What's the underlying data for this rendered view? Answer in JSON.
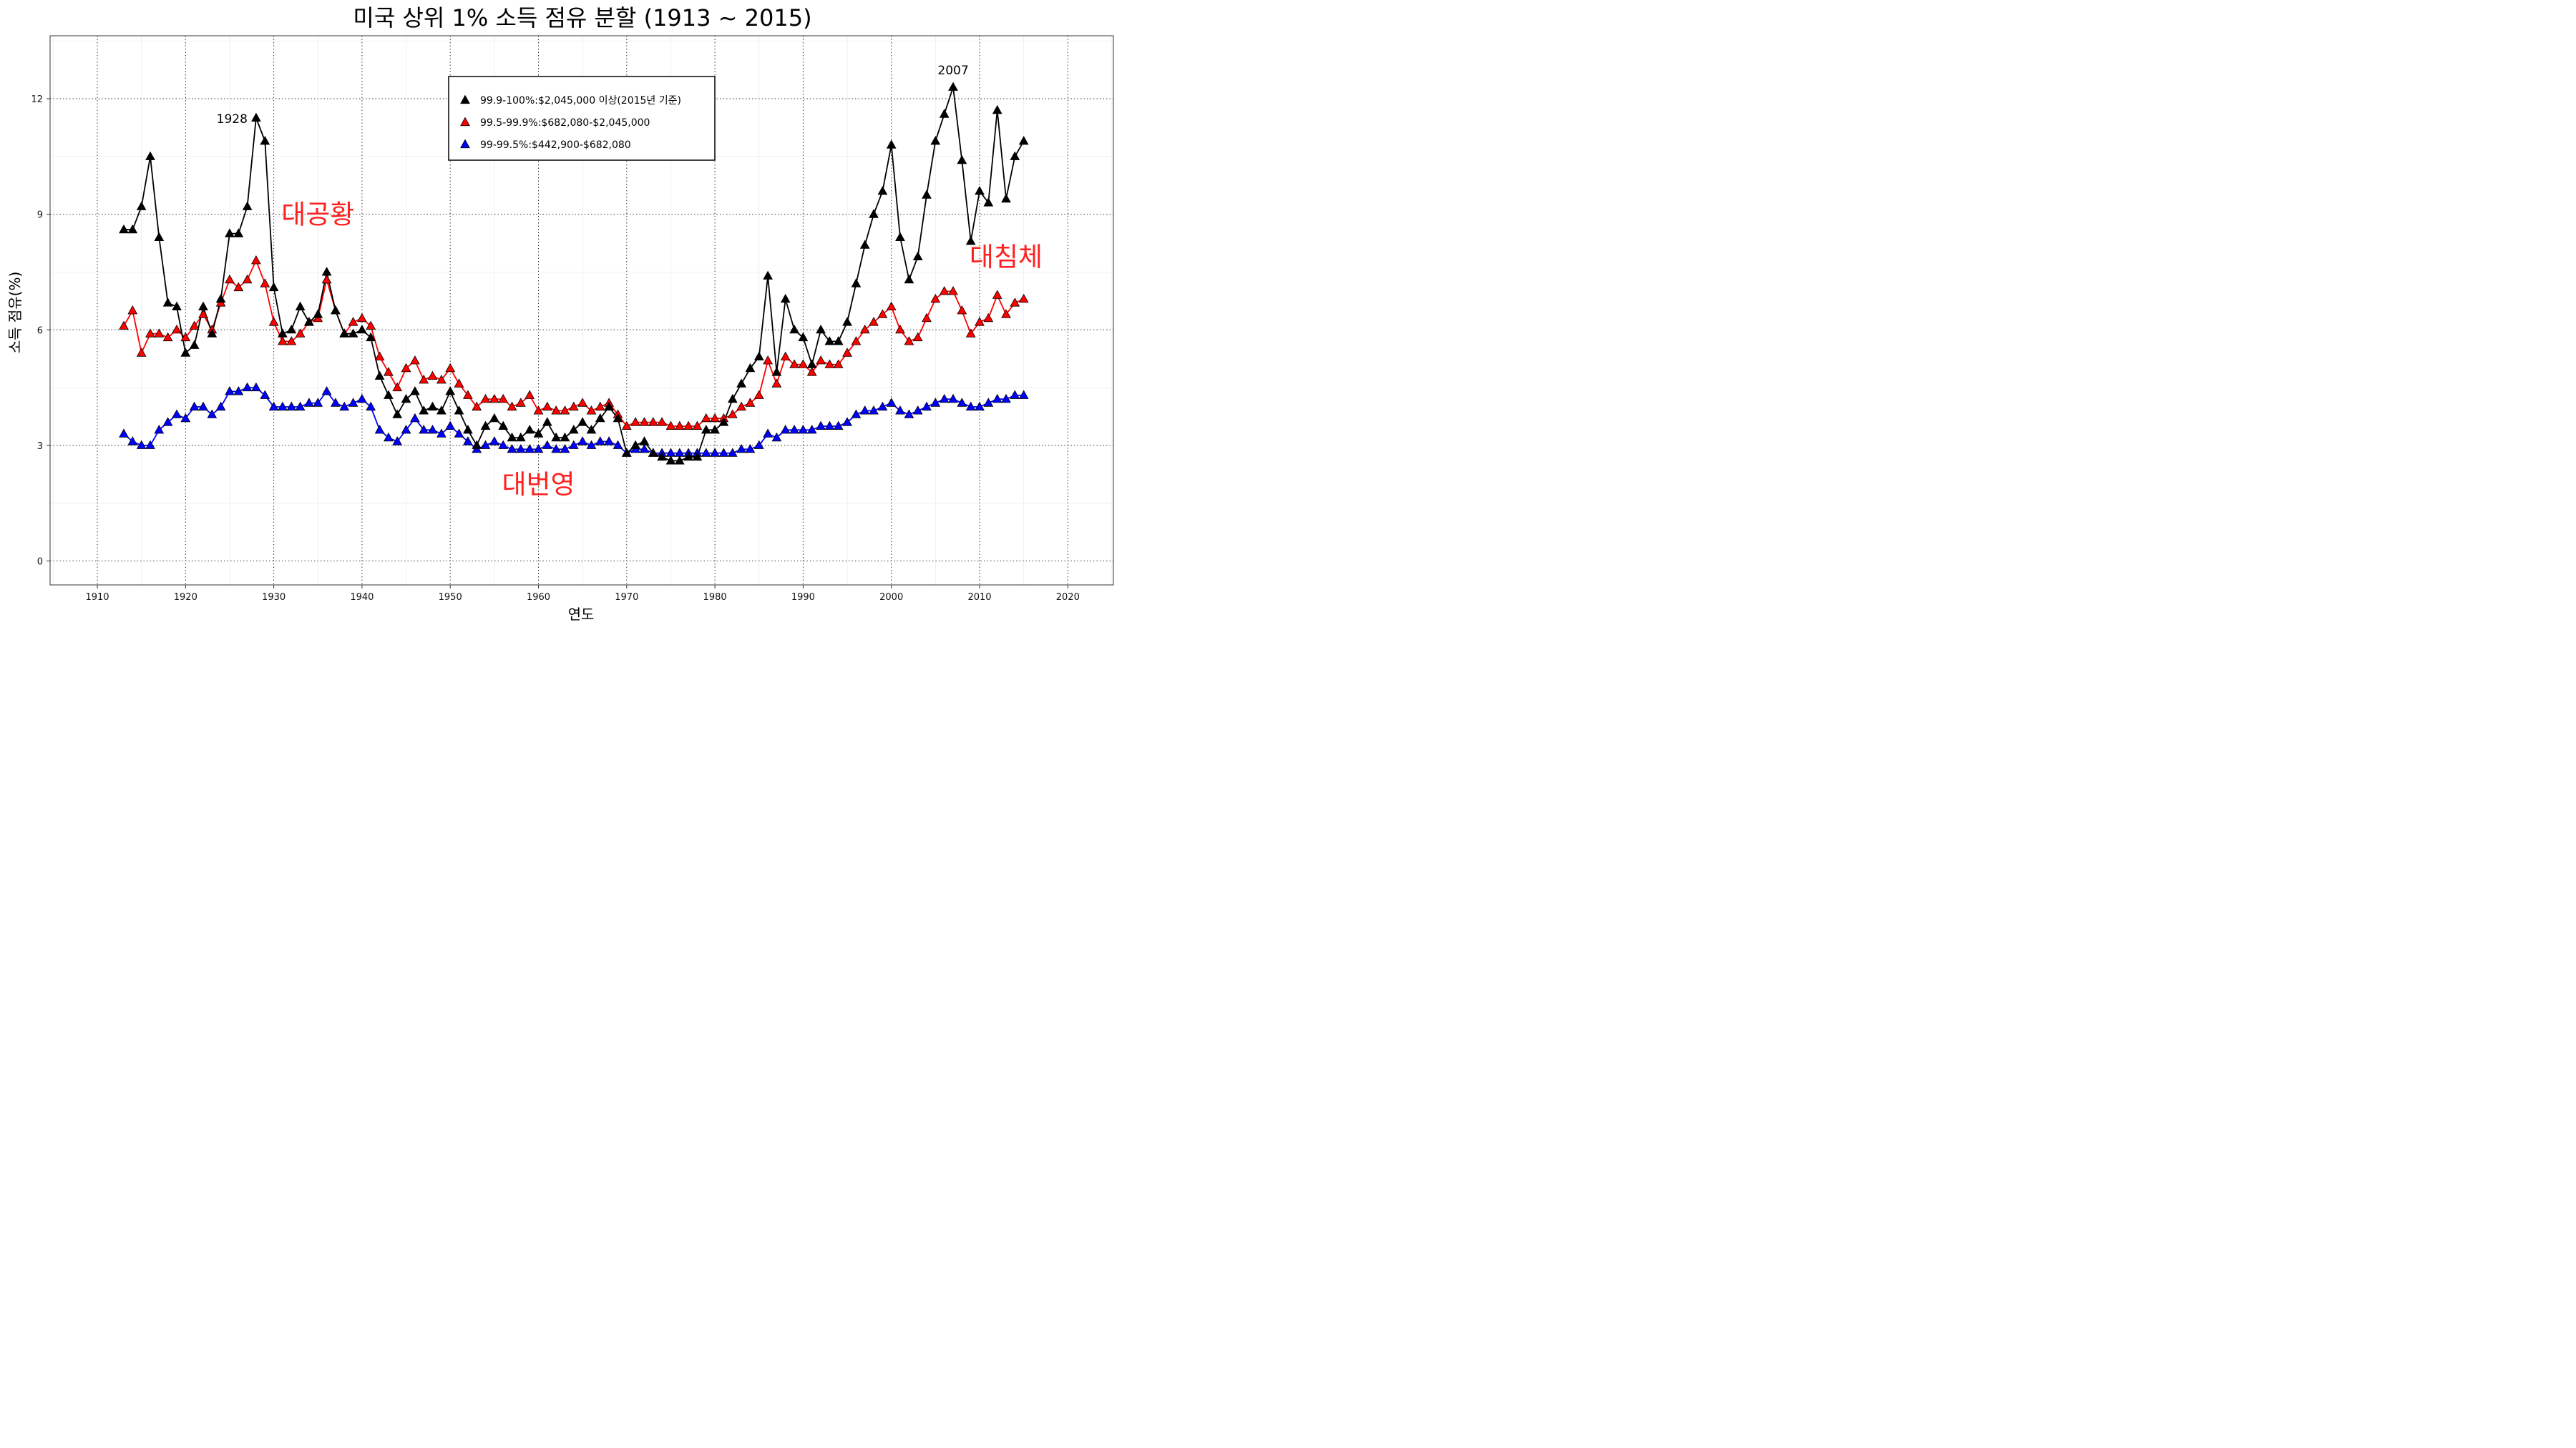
{
  "chart_data": {
    "type": "line",
    "title": "미국 상위 1% 소득 점유 분할 (1913 ~ 2015)",
    "xlabel": "연도",
    "ylabel": "소득 점유(%)",
    "xlim": [
      1905,
      2025
    ],
    "ylim": [
      -0.6,
      13.4
    ],
    "xticks": [
      1910,
      1920,
      1930,
      1940,
      1950,
      1960,
      1970,
      1980,
      1990,
      2000,
      2010,
      2020
    ],
    "yticks": [
      0,
      3,
      6,
      9,
      12
    ],
    "grid": true,
    "legend_position": "top-center",
    "x": [
      1913,
      1914,
      1915,
      1916,
      1917,
      1918,
      1919,
      1920,
      1921,
      1922,
      1923,
      1924,
      1925,
      1926,
      1927,
      1928,
      1929,
      1930,
      1931,
      1932,
      1933,
      1934,
      1935,
      1936,
      1937,
      1938,
      1939,
      1940,
      1941,
      1942,
      1943,
      1944,
      1945,
      1946,
      1947,
      1948,
      1949,
      1950,
      1951,
      1952,
      1953,
      1954,
      1955,
      1956,
      1957,
      1958,
      1959,
      1960,
      1961,
      1962,
      1963,
      1964,
      1965,
      1966,
      1967,
      1968,
      1969,
      1970,
      1971,
      1972,
      1973,
      1974,
      1975,
      1976,
      1977,
      1978,
      1979,
      1980,
      1981,
      1982,
      1983,
      1984,
      1985,
      1986,
      1987,
      1988,
      1989,
      1990,
      1991,
      1992,
      1993,
      1994,
      1995,
      1996,
      1997,
      1998,
      1999,
      2000,
      2001,
      2002,
      2003,
      2004,
      2005,
      2006,
      2007,
      2008,
      2009,
      2010,
      2011,
      2012,
      2013,
      2014,
      2015
    ],
    "series": [
      {
        "name": "99.9-100%:$2,045,000 이상(2015년 기준)",
        "color": "#000000",
        "values": [
          8.6,
          8.6,
          9.2,
          10.5,
          8.4,
          6.7,
          6.6,
          5.4,
          5.6,
          6.6,
          5.9,
          6.8,
          8.5,
          8.5,
          9.2,
          11.5,
          10.9,
          7.1,
          5.9,
          6.0,
          6.6,
          6.2,
          6.4,
          7.5,
          6.5,
          5.9,
          5.9,
          6.0,
          5.8,
          4.8,
          4.3,
          3.8,
          4.2,
          4.4,
          3.9,
          4.0,
          3.9,
          4.4,
          3.9,
          3.4,
          3.0,
          3.5,
          3.7,
          3.5,
          3.2,
          3.2,
          3.4,
          3.3,
          3.6,
          3.2,
          3.2,
          3.4,
          3.6,
          3.4,
          3.7,
          4.0,
          3.7,
          2.8,
          3.0,
          3.1,
          2.8,
          2.7,
          2.6,
          2.6,
          2.7,
          2.7,
          3.4,
          3.4,
          3.6,
          4.2,
          4.6,
          5.0,
          5.3,
          7.4,
          4.9,
          6.8,
          6.0,
          5.8,
          5.1,
          6.0,
          5.7,
          5.7,
          6.2,
          7.2,
          8.2,
          9.0,
          9.6,
          10.8,
          8.4,
          7.3,
          7.9,
          9.5,
          10.9,
          11.6,
          12.3,
          10.4,
          8.3,
          9.6,
          9.3,
          11.7,
          9.4,
          10.5,
          10.9
        ]
      },
      {
        "name": "99.5-99.9%:$682,080-$2,045,000",
        "color": "#ff0000",
        "values": [
          6.1,
          6.5,
          5.4,
          5.9,
          5.9,
          5.8,
          6.0,
          5.8,
          6.1,
          6.4,
          6.0,
          6.7,
          7.3,
          7.1,
          7.3,
          7.8,
          7.2,
          6.2,
          5.7,
          5.7,
          5.9,
          6.2,
          6.3,
          7.3,
          6.5,
          5.9,
          6.2,
          6.3,
          6.1,
          5.3,
          4.9,
          4.5,
          5.0,
          5.2,
          4.7,
          4.8,
          4.7,
          5.0,
          4.6,
          4.3,
          4.0,
          4.2,
          4.2,
          4.2,
          4.0,
          4.1,
          4.3,
          3.9,
          4.0,
          3.9,
          3.9,
          4.0,
          4.1,
          3.9,
          4.0,
          4.1,
          3.8,
          3.5,
          3.6,
          3.6,
          3.6,
          3.6,
          3.5,
          3.5,
          3.5,
          3.5,
          3.7,
          3.7,
          3.7,
          3.8,
          4.0,
          4.1,
          4.3,
          5.2,
          4.6,
          5.3,
          5.1,
          5.1,
          4.9,
          5.2,
          5.1,
          5.1,
          5.4,
          5.7,
          6.0,
          6.2,
          6.4,
          6.6,
          6.0,
          5.7,
          5.8,
          6.3,
          6.8,
          7.0,
          7.0,
          6.5,
          5.9,
          6.2,
          6.3,
          6.9,
          6.4,
          6.7,
          6.8
        ]
      },
      {
        "name": "99-99.5%:$442,900-$682,080",
        "color": "#0000ff",
        "values": [
          3.3,
          3.1,
          3.0,
          3.0,
          3.4,
          3.6,
          3.8,
          3.7,
          4.0,
          4.0,
          3.8,
          4.0,
          4.4,
          4.4,
          4.5,
          4.5,
          4.3,
          4.0,
          4.0,
          4.0,
          4.0,
          4.1,
          4.1,
          4.4,
          4.1,
          4.0,
          4.1,
          4.2,
          4.0,
          3.4,
          3.2,
          3.1,
          3.4,
          3.7,
          3.4,
          3.4,
          3.3,
          3.5,
          3.3,
          3.1,
          2.9,
          3.0,
          3.1,
          3.0,
          2.9,
          2.9,
          2.9,
          2.9,
          3.0,
          2.9,
          2.9,
          3.0,
          3.1,
          3.0,
          3.1,
          3.1,
          3.0,
          2.8,
          2.9,
          2.9,
          2.8,
          2.8,
          2.8,
          2.8,
          2.8,
          2.8,
          2.8,
          2.8,
          2.8,
          2.8,
          2.9,
          2.9,
          3.0,
          3.3,
          3.2,
          3.4,
          3.4,
          3.4,
          3.4,
          3.5,
          3.5,
          3.5,
          3.6,
          3.8,
          3.9,
          3.9,
          4.0,
          4.1,
          3.9,
          3.8,
          3.9,
          4.0,
          4.1,
          4.2,
          4.2,
          4.1,
          4.0,
          4.0,
          4.1,
          4.2,
          4.2,
          4.3,
          4.3
        ]
      }
    ],
    "annotations": [
      {
        "text": "1928",
        "x": 1928,
        "y": 11.5,
        "align": "left-of"
      },
      {
        "text": "2007",
        "x": 2007,
        "y": 12.3,
        "align": "above"
      }
    ],
    "era_labels": [
      {
        "text": "대공황",
        "x": 1935,
        "y": 9.0,
        "color": "#ff0000"
      },
      {
        "text": "대번영",
        "x": 1960,
        "y": 2.0,
        "color": "#ff0000"
      },
      {
        "text": "대침체",
        "x": 2013,
        "y": 7.9,
        "color": "#ff0000"
      }
    ]
  }
}
